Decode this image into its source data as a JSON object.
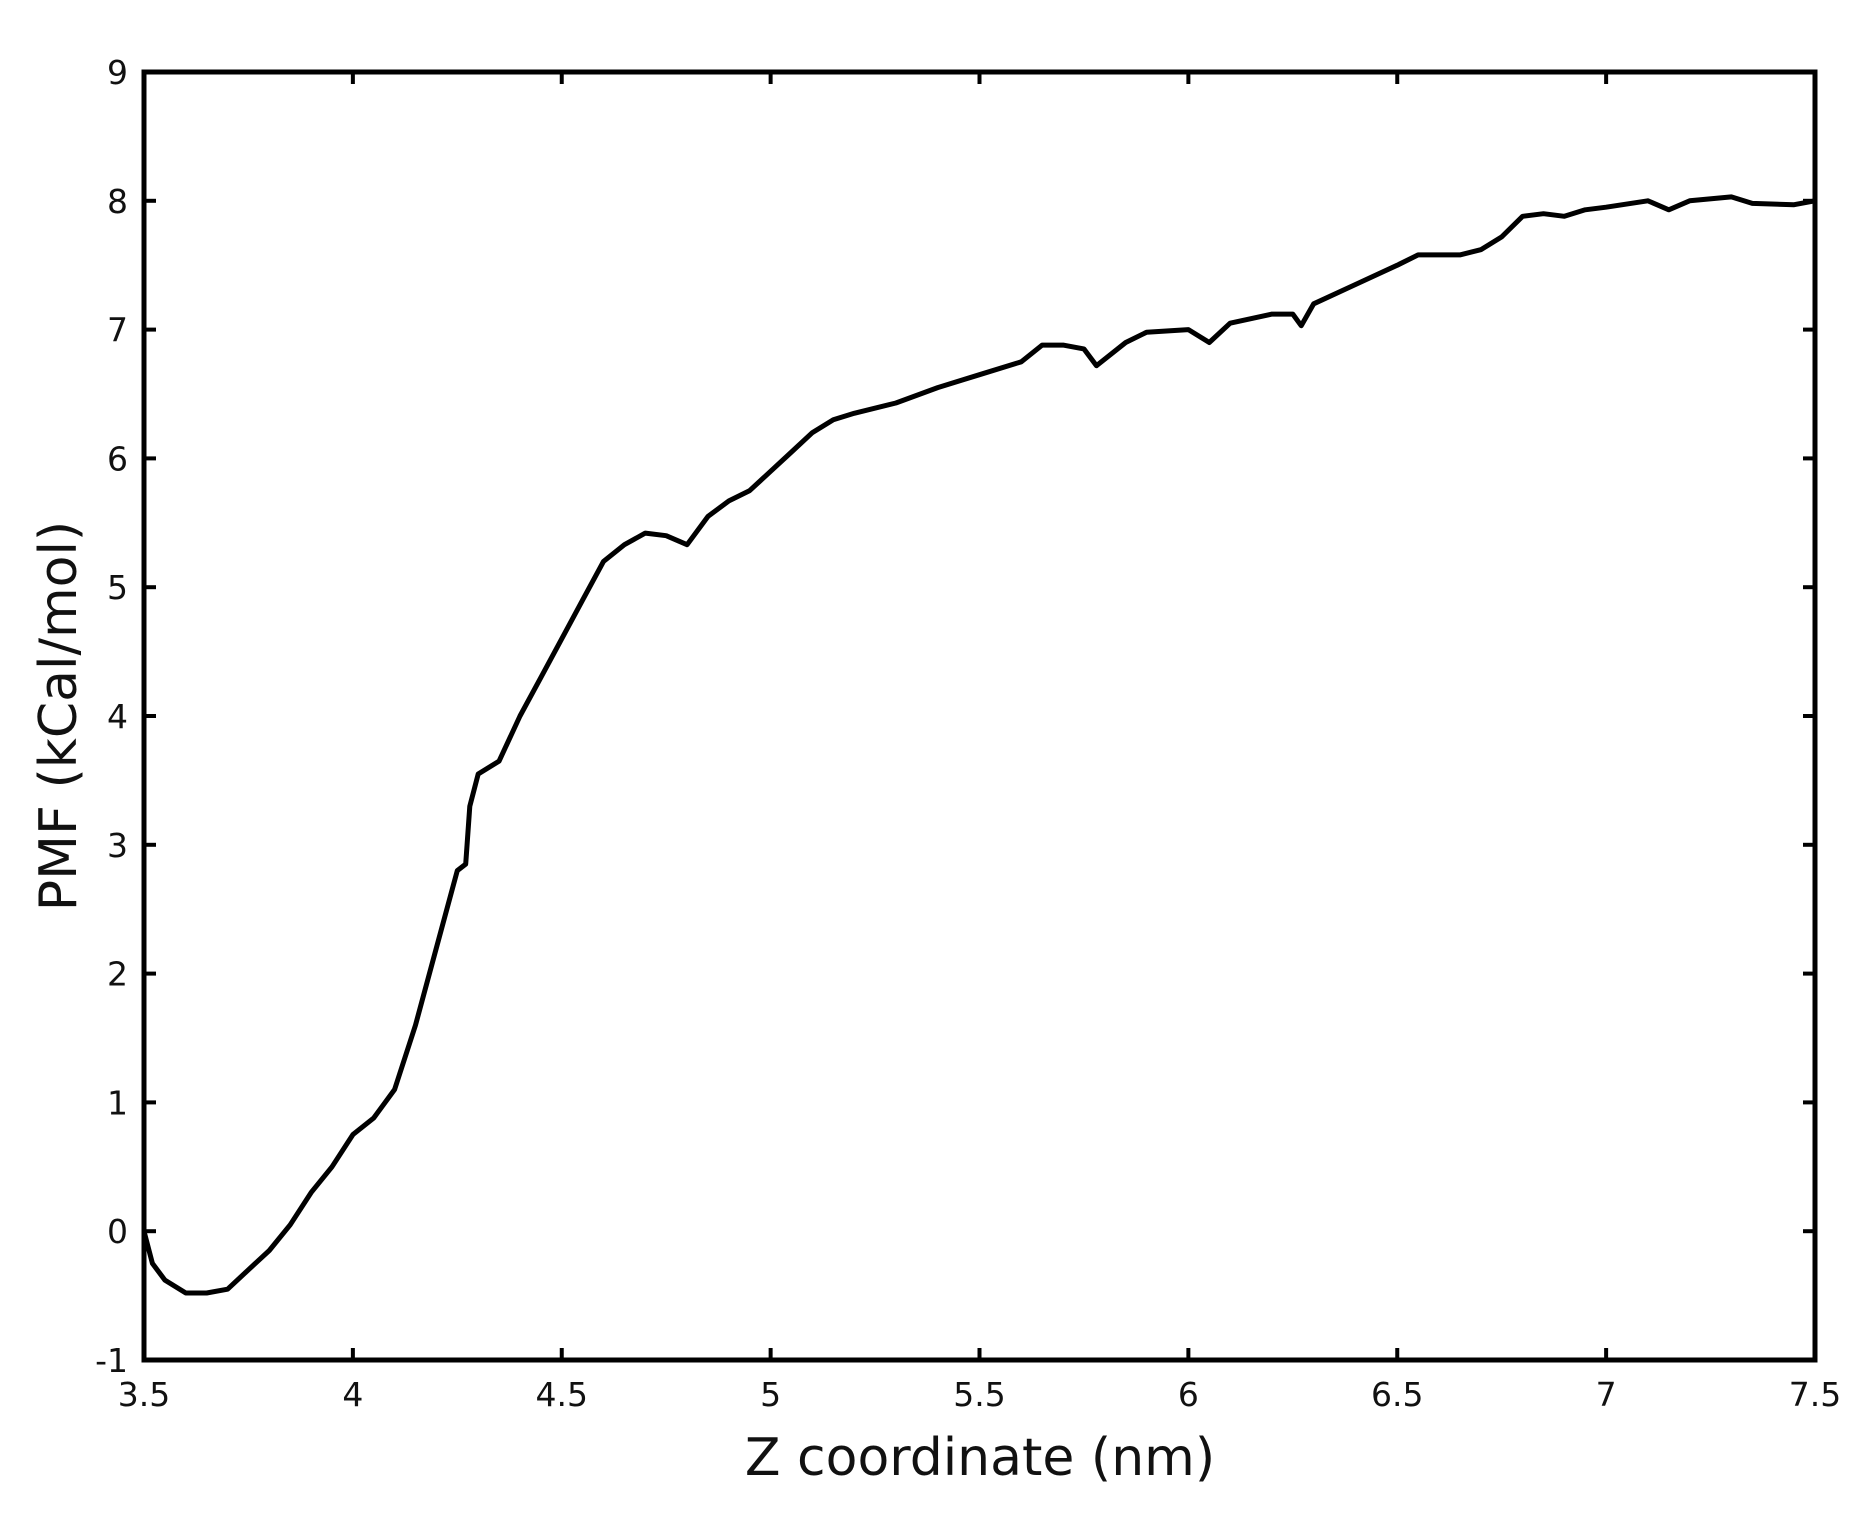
{
  "chart_data": {
    "type": "line",
    "x_label": "Z coordinate (nm)",
    "y_label": "PMF (kCal/mol)",
    "x": [
      3.5,
      3.52,
      3.55,
      3.6,
      3.65,
      3.7,
      3.75,
      3.8,
      3.85,
      3.9,
      3.95,
      4.0,
      4.05,
      4.1,
      4.15,
      4.2,
      4.25,
      4.27,
      4.28,
      4.3,
      4.35,
      4.4,
      4.45,
      4.5,
      4.55,
      4.6,
      4.65,
      4.7,
      4.75,
      4.8,
      4.85,
      4.9,
      4.95,
      5.0,
      5.05,
      5.1,
      5.15,
      5.2,
      5.3,
      5.4,
      5.5,
      5.6,
      5.65,
      5.7,
      5.75,
      5.78,
      5.85,
      5.9,
      6.0,
      6.05,
      6.1,
      6.2,
      6.25,
      6.27,
      6.3,
      6.4,
      6.5,
      6.55,
      6.65,
      6.7,
      6.75,
      6.8,
      6.85,
      6.9,
      6.95,
      7.0,
      7.1,
      7.15,
      7.2,
      7.3,
      7.35,
      7.45,
      7.5
    ],
    "series": [
      {
        "name": "PMF",
        "color": "#000000",
        "values": [
          0,
          -0.25,
          -0.38,
          -0.48,
          -0.48,
          -0.45,
          -0.3,
          -0.15,
          0.05,
          0.3,
          0.5,
          0.75,
          0.88,
          1.1,
          1.6,
          2.2,
          2.8,
          2.85,
          3.3,
          3.55,
          3.65,
          4.0,
          4.3,
          4.6,
          4.9,
          5.2,
          5.33,
          5.42,
          5.4,
          5.33,
          5.55,
          5.67,
          5.75,
          5.9,
          6.05,
          6.2,
          6.3,
          6.35,
          6.43,
          6.55,
          6.65,
          6.75,
          6.88,
          6.88,
          6.85,
          6.72,
          6.9,
          6.98,
          7.0,
          6.9,
          7.05,
          7.12,
          7.12,
          7.03,
          7.2,
          7.35,
          7.5,
          7.58,
          7.58,
          7.62,
          7.72,
          7.88,
          7.9,
          7.88,
          7.93,
          7.95,
          8.0,
          7.93,
          8.0,
          8.03,
          7.98,
          7.97,
          8.0
        ]
      }
    ],
    "xlim": [
      3.5,
      7.5
    ],
    "xticks": [
      3.5,
      4,
      4.5,
      5,
      5.5,
      6,
      6.5,
      7,
      7.5
    ],
    "ylim": [
      -1,
      9
    ],
    "yticks": [
      -1,
      0,
      1,
      2,
      3,
      4,
      5,
      6,
      7,
      8,
      9
    ],
    "grid": false
  }
}
